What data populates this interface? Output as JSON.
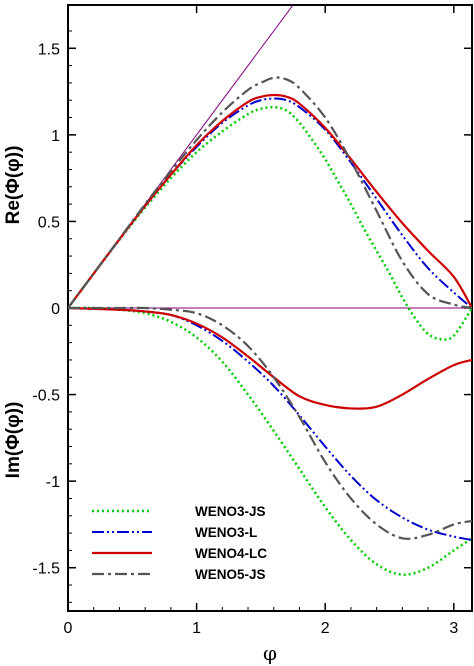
{
  "chart_data": {
    "type": "line",
    "title": "",
    "xlabel": "φ",
    "ylabel_top": "Re(Φ(φ))",
    "ylabel_bottom": "Im(Φ(φ))",
    "xlim": [
      0,
      3.14159
    ],
    "ylim": [
      -1.75,
      1.75
    ],
    "grid": false,
    "legend_position": "bottom-left",
    "x_ticks": [
      {
        "v": 0,
        "label": "0"
      },
      {
        "v": 1,
        "label": "1"
      },
      {
        "v": 2,
        "label": "2"
      },
      {
        "v": 3,
        "label": "3"
      }
    ],
    "y_ticks": [
      {
        "v": 1.5,
        "label": "1.5"
      },
      {
        "v": 1,
        "label": "1"
      },
      {
        "v": 0.5,
        "label": "0.5"
      },
      {
        "v": 0,
        "label": "0"
      },
      {
        "v": -0.5,
        "label": "-0.5"
      },
      {
        "v": -1,
        "label": "-1"
      },
      {
        "v": -1.5,
        "label": "-1.5"
      }
    ],
    "exact": {
      "color": "#800080",
      "re": [
        [
          0,
          0
        ],
        [
          1.8,
          1.8
        ]
      ],
      "im": [
        [
          0,
          0
        ],
        [
          3.14159,
          0
        ]
      ]
    },
    "series": [
      {
        "name": "WENO3-JS",
        "color": "#00cc00",
        "dash": "2,3",
        "width": 2.5,
        "re": [
          [
            0,
            0
          ],
          [
            0.2,
            0.199
          ],
          [
            0.4,
            0.395
          ],
          [
            0.6,
            0.58
          ],
          [
            0.8,
            0.75
          ],
          [
            1.0,
            0.9
          ],
          [
            1.2,
            1.02
          ],
          [
            1.4,
            1.12
          ],
          [
            1.5,
            1.15
          ],
          [
            1.6,
            1.16
          ],
          [
            1.7,
            1.14
          ],
          [
            1.8,
            1.07
          ],
          [
            1.9,
            0.97
          ],
          [
            2.0,
            0.86
          ],
          [
            2.1,
            0.73
          ],
          [
            2.2,
            0.6
          ],
          [
            2.3,
            0.46
          ],
          [
            2.4,
            0.33
          ],
          [
            2.5,
            0.2
          ],
          [
            2.6,
            0.06
          ],
          [
            2.7,
            -0.06
          ],
          [
            2.8,
            -0.15
          ],
          [
            2.9,
            -0.18
          ],
          [
            3.0,
            -0.16
          ],
          [
            3.14159,
            0
          ]
        ],
        "im": [
          [
            0,
            0
          ],
          [
            0.2,
            0
          ],
          [
            0.4,
            -0.01
          ],
          [
            0.6,
            -0.03
          ],
          [
            0.8,
            -0.08
          ],
          [
            1.0,
            -0.17
          ],
          [
            1.2,
            -0.31
          ],
          [
            1.4,
            -0.5
          ],
          [
            1.6,
            -0.71
          ],
          [
            1.8,
            -0.93
          ],
          [
            2.0,
            -1.15
          ],
          [
            2.2,
            -1.34
          ],
          [
            2.4,
            -1.48
          ],
          [
            2.6,
            -1.54
          ],
          [
            2.8,
            -1.5
          ],
          [
            3.0,
            -1.4
          ],
          [
            3.14159,
            -1.33
          ]
        ]
      },
      {
        "name": "WENO3-L",
        "color": "#0000cc",
        "dash": "12,3,2,3,2,3",
        "width": 2,
        "re": [
          [
            0,
            0
          ],
          [
            0.2,
            0.199
          ],
          [
            0.4,
            0.397
          ],
          [
            0.6,
            0.59
          ],
          [
            0.8,
            0.77
          ],
          [
            1.0,
            0.93
          ],
          [
            1.2,
            1.07
          ],
          [
            1.4,
            1.17
          ],
          [
            1.5,
            1.2
          ],
          [
            1.6,
            1.21
          ],
          [
            1.7,
            1.2
          ],
          [
            1.8,
            1.16
          ],
          [
            2.0,
            1.03
          ],
          [
            2.2,
            0.84
          ],
          [
            2.4,
            0.63
          ],
          [
            2.6,
            0.42
          ],
          [
            2.8,
            0.23
          ],
          [
            3.0,
            0.09
          ],
          [
            3.14159,
            0
          ]
        ],
        "im": [
          [
            0,
            0
          ],
          [
            0.4,
            -0.01
          ],
          [
            0.6,
            -0.02
          ],
          [
            0.8,
            -0.04
          ],
          [
            1.0,
            -0.1
          ],
          [
            1.2,
            -0.19
          ],
          [
            1.4,
            -0.31
          ],
          [
            1.6,
            -0.45
          ],
          [
            1.8,
            -0.62
          ],
          [
            2.0,
            -0.8
          ],
          [
            2.2,
            -0.97
          ],
          [
            2.4,
            -1.11
          ],
          [
            2.6,
            -1.21
          ],
          [
            2.8,
            -1.28
          ],
          [
            3.0,
            -1.32
          ],
          [
            3.14159,
            -1.34
          ]
        ]
      },
      {
        "name": "WENO4-LC",
        "color": "#cc0000",
        "dash": "",
        "width": 2.2,
        "re": [
          [
            0,
            0
          ],
          [
            0.2,
            0.199
          ],
          [
            0.4,
            0.397
          ],
          [
            0.6,
            0.59
          ],
          [
            0.8,
            0.77
          ],
          [
            1.0,
            0.94
          ],
          [
            1.2,
            1.08
          ],
          [
            1.4,
            1.19
          ],
          [
            1.5,
            1.22
          ],
          [
            1.6,
            1.23
          ],
          [
            1.7,
            1.22
          ],
          [
            1.8,
            1.18
          ],
          [
            2.0,
            1.04
          ],
          [
            2.2,
            0.86
          ],
          [
            2.4,
            0.67
          ],
          [
            2.6,
            0.49
          ],
          [
            2.8,
            0.33
          ],
          [
            3.0,
            0.18
          ],
          [
            3.14159,
            0
          ]
        ],
        "im": [
          [
            0,
            0
          ],
          [
            0.4,
            -0.01
          ],
          [
            0.6,
            -0.02
          ],
          [
            0.8,
            -0.04
          ],
          [
            1.0,
            -0.09
          ],
          [
            1.2,
            -0.17
          ],
          [
            1.4,
            -0.28
          ],
          [
            1.6,
            -0.4
          ],
          [
            1.8,
            -0.51
          ],
          [
            2.0,
            -0.56
          ],
          [
            2.2,
            -0.58
          ],
          [
            2.4,
            -0.57
          ],
          [
            2.6,
            -0.5
          ],
          [
            2.8,
            -0.41
          ],
          [
            3.0,
            -0.33
          ],
          [
            3.14159,
            -0.3
          ]
        ]
      },
      {
        "name": "WENO5-JS",
        "color": "#555555",
        "dash": "12,4,3,4",
        "width": 2.2,
        "re": [
          [
            0,
            0
          ],
          [
            0.2,
            0.2
          ],
          [
            0.4,
            0.4
          ],
          [
            0.6,
            0.6
          ],
          [
            0.8,
            0.79
          ],
          [
            1.0,
            0.97
          ],
          [
            1.2,
            1.13
          ],
          [
            1.4,
            1.26
          ],
          [
            1.5,
            1.3
          ],
          [
            1.6,
            1.33
          ],
          [
            1.7,
            1.32
          ],
          [
            1.8,
            1.27
          ],
          [
            2.0,
            1.1
          ],
          [
            2.2,
            0.85
          ],
          [
            2.4,
            0.56
          ],
          [
            2.6,
            0.27
          ],
          [
            2.8,
            0.08
          ],
          [
            3.0,
            0.02
          ],
          [
            3.14159,
            0
          ]
        ],
        "im": [
          [
            0,
            0
          ],
          [
            0.4,
            0
          ],
          [
            0.6,
            0
          ],
          [
            0.8,
            -0.01
          ],
          [
            1.0,
            -0.03
          ],
          [
            1.2,
            -0.1
          ],
          [
            1.4,
            -0.22
          ],
          [
            1.6,
            -0.4
          ],
          [
            1.8,
            -0.63
          ],
          [
            2.0,
            -0.89
          ],
          [
            2.2,
            -1.1
          ],
          [
            2.4,
            -1.25
          ],
          [
            2.6,
            -1.33
          ],
          [
            2.8,
            -1.31
          ],
          [
            3.0,
            -1.25
          ],
          [
            3.14159,
            -1.23
          ]
        ]
      }
    ]
  }
}
